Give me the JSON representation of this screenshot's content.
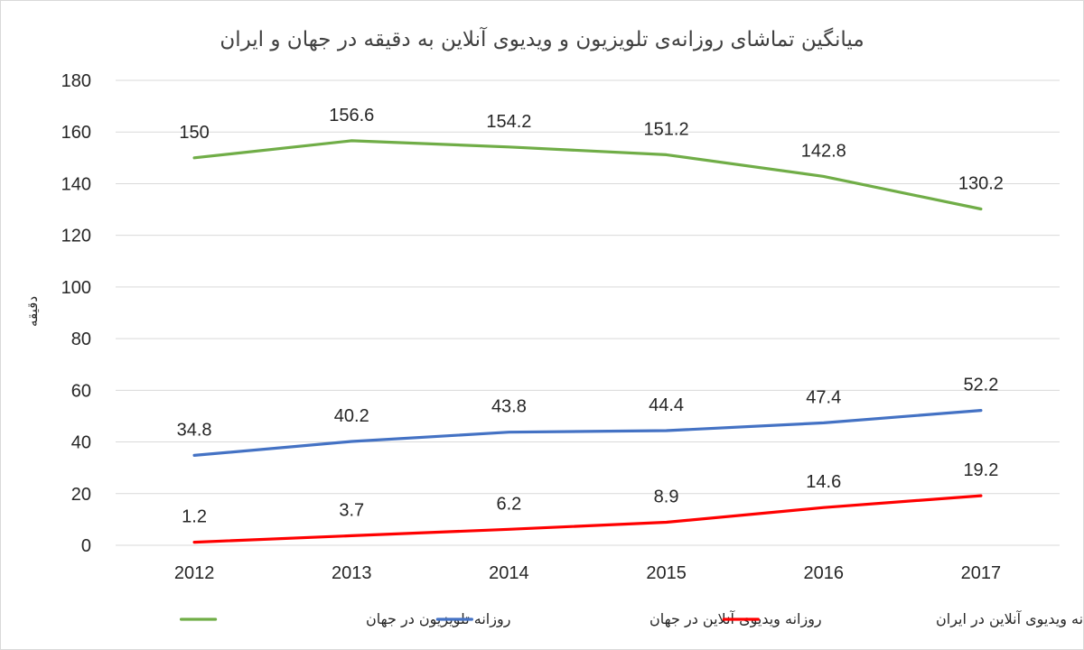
{
  "chart_data": {
    "type": "line",
    "title": "میانگین تماشای روزانه‌ی تلویزیون و ویدیوی آنلاین به دقیقه در جهان و ایران",
    "xlabel": "",
    "ylabel": "دقیقه",
    "ylim": [
      0,
      180
    ],
    "yticks": [
      0,
      20,
      40,
      60,
      80,
      100,
      120,
      140,
      160,
      180
    ],
    "categories": [
      "2012",
      "2013",
      "2014",
      "2015",
      "2016",
      "2017"
    ],
    "grid": true,
    "legend_position": "bottom",
    "series": [
      {
        "name": "روزانه تلویزیون در جهان",
        "color": "#70ad47",
        "values": [
          150,
          156.6,
          154.2,
          151.2,
          142.8,
          130.2
        ]
      },
      {
        "name": "روزانه ویدیوی آنلاین در جهان",
        "color": "#4472c4",
        "values": [
          34.8,
          40.2,
          43.8,
          44.4,
          47.4,
          52.2
        ]
      },
      {
        "name": "روزانه ویدیوی آنلاین در ایران",
        "color": "#ff0000",
        "values": [
          1.2,
          3.7,
          6.2,
          8.9,
          14.6,
          19.2
        ]
      }
    ]
  }
}
